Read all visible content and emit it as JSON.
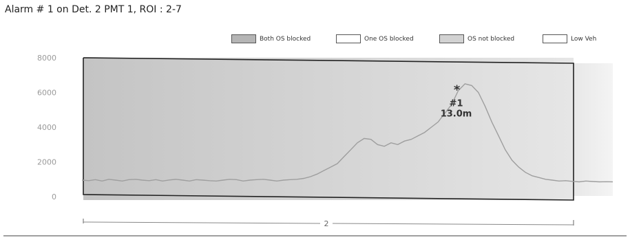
{
  "title": "Alarm # 1 on Det. 2 PMT 1, ROI : 2-7",
  "legend": [
    {
      "label": "Both OS blocked",
      "color": "#b5b5b5"
    },
    {
      "label": "One OS blocked",
      "color": "#ffffff"
    },
    {
      "label": "OS not blocked",
      "color": "#d2d2d2"
    },
    {
      "label": "Low Veh",
      "color": "#ffffff"
    }
  ],
  "chart_data": {
    "type": "area",
    "title": "Alarm # 1 on Det. 2 PMT 1, ROI : 2-7",
    "ylim": [
      0,
      8000
    ],
    "yticks": [
      "8000",
      "6000",
      "4000",
      "2000",
      "0"
    ],
    "grid": false,
    "legend_position": "top-right",
    "series": [
      {
        "values": [
          950,
          920,
          980,
          900,
          1000,
          950,
          900,
          980,
          1000,
          950,
          920,
          980,
          900,
          960,
          1000,
          950,
          900,
          980,
          950,
          920,
          900,
          950,
          1000,
          980,
          900,
          950,
          980,
          1000,
          950,
          900,
          950,
          980,
          1000,
          1050,
          1150,
          1300,
          1500,
          1700,
          1900,
          2300,
          2700,
          3100,
          3350,
          3300,
          3000,
          2900,
          3100,
          3000,
          3200,
          3300,
          3500,
          3700,
          4000,
          4300,
          4800,
          5300,
          6100,
          6500,
          6400,
          6000,
          5200,
          4300,
          3500,
          2700,
          2100,
          1700,
          1400,
          1200,
          1100,
          1000,
          950,
          900,
          920,
          880,
          850,
          900,
          870,
          850,
          860,
          850
        ]
      }
    ],
    "annotations": [
      {
        "marker": "*",
        "label": "#1",
        "sublabel": "13.0m",
        "x_index": 56,
        "y": 5800
      }
    ],
    "range_label": "2"
  }
}
